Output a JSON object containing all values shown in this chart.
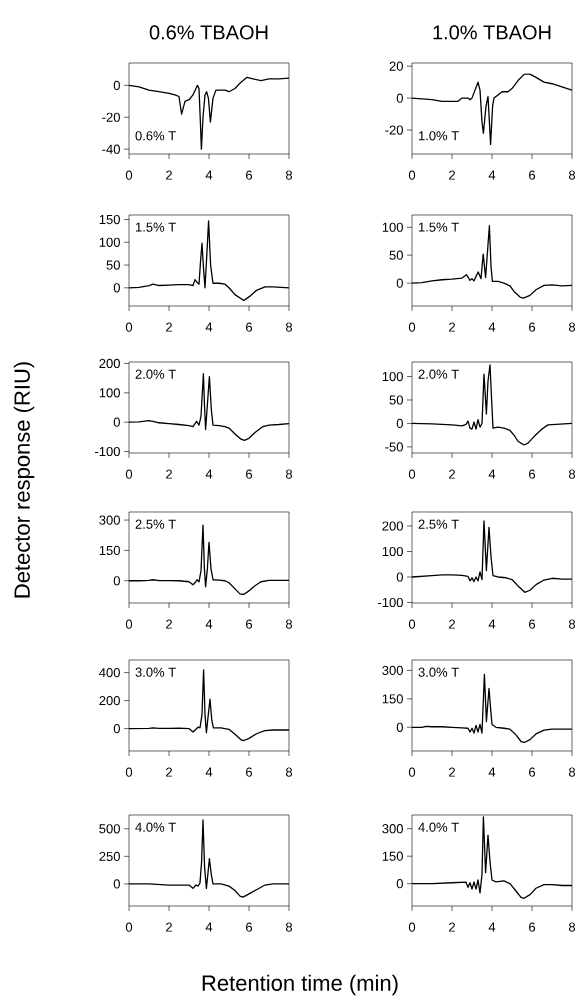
{
  "chart_data": [
    {
      "type": "line",
      "title": "0.6% TBAOH",
      "annotations": [
        "0.6% T"
      ],
      "color": "#000000",
      "xlim": [
        0,
        8
      ],
      "xticks": [
        0,
        2,
        4,
        6,
        8
      ],
      "ylim": [
        -43,
        14
      ],
      "yticks": [
        -40,
        -20,
        0
      ],
      "x": [
        0,
        0.5,
        1,
        1.5,
        2,
        2.3,
        2.5,
        2.63,
        2.8,
        3.0,
        3.2,
        3.42,
        3.5,
        3.56,
        3.62,
        3.7,
        3.8,
        3.88,
        3.97,
        4.07,
        4.2,
        4.35,
        4.6,
        4.8,
        5.0,
        5.3,
        5.6,
        5.9,
        6.2,
        6.6,
        7.0,
        7.5,
        8
      ],
      "values": [
        0,
        -1,
        -3,
        -4,
        -5,
        -6,
        -7,
        -18,
        -10,
        -9,
        -6,
        0,
        -2,
        -20,
        -40,
        -20,
        -6,
        -4,
        -8,
        -23,
        -8,
        -3,
        -3,
        -3,
        -4,
        -2,
        2,
        5,
        4,
        3,
        4,
        4,
        4.5
      ]
    },
    {
      "type": "line",
      "title": "1.0% TBAOH",
      "annotations": [
        "1.0% T"
      ],
      "color": "#000000",
      "xlim": [
        0,
        8
      ],
      "xticks": [
        0,
        2,
        4,
        6,
        8
      ],
      "ylim": [
        -35,
        22
      ],
      "yticks": [
        -20,
        0,
        20
      ],
      "x": [
        0,
        1,
        1.5,
        2,
        2.3,
        2.5,
        2.8,
        2.9,
        3.0,
        3.15,
        3.3,
        3.4,
        3.5,
        3.57,
        3.7,
        3.8,
        3.93,
        4.03,
        4.1,
        4.3,
        4.5,
        4.8,
        5.0,
        5.3,
        5.62,
        5.9,
        6.2,
        6.6,
        7,
        7.5,
        8
      ],
      "values": [
        0,
        -1,
        -2,
        -2,
        -2,
        0,
        0,
        -1,
        0,
        5,
        10,
        5,
        -15,
        -22,
        -5,
        1,
        -29,
        -5,
        0,
        2,
        4,
        4,
        6,
        11,
        15,
        15,
        13,
        10,
        9,
        7,
        5
      ]
    },
    {
      "type": "line",
      "annotations": [
        "1.5% T"
      ],
      "color": "#000000",
      "xlim": [
        0,
        8
      ],
      "xticks": [
        0,
        2,
        4,
        6,
        8
      ],
      "ylim": [
        -40,
        160
      ],
      "yticks": [
        0,
        50,
        100,
        150
      ],
      "x": [
        0,
        0.5,
        1.0,
        1.2,
        1.5,
        2,
        2.5,
        3,
        3.2,
        3.3,
        3.4,
        3.5,
        3.58,
        3.65,
        3.73,
        3.8,
        3.9,
        3.98,
        4.08,
        4.2,
        4.5,
        4.8,
        5.0,
        5.3,
        5.74,
        6.0,
        6.4,
        6.8,
        7.2,
        7.6,
        8
      ],
      "values": [
        0,
        1,
        5,
        8,
        5,
        6,
        7,
        7,
        5,
        18,
        12,
        8,
        60,
        98,
        40,
        0,
        80,
        147,
        50,
        10,
        10,
        8,
        0,
        -15,
        -28,
        -20,
        -5,
        2,
        2,
        1,
        0
      ]
    },
    {
      "type": "line",
      "annotations": [
        "1.5% T"
      ],
      "color": "#000000",
      "xlim": [
        0,
        8
      ],
      "xticks": [
        0,
        2,
        4,
        6,
        8
      ],
      "ylim": [
        -41,
        122
      ],
      "yticks": [
        0,
        50,
        100
      ],
      "x": [
        0,
        0.5,
        1,
        1.5,
        2,
        2.5,
        2.73,
        2.9,
        3.0,
        3.1,
        3.2,
        3.31,
        3.45,
        3.56,
        3.68,
        3.87,
        3.95,
        4.02,
        4.3,
        4.6,
        4.9,
        5.1,
        5.4,
        5.57,
        5.9,
        6.2,
        6.6,
        7,
        7.5,
        8
      ],
      "values": [
        0,
        1,
        4,
        6,
        7,
        9,
        15,
        5,
        8,
        4,
        12,
        20,
        8,
        52,
        10,
        103,
        30,
        3,
        3,
        0,
        -5,
        -15,
        -25,
        -27,
        -22,
        -12,
        -4,
        -3,
        -5,
        -4
      ]
    },
    {
      "type": "line",
      "ylabel": "Detector response (RIU)",
      "annotations": [
        "2.0% T"
      ],
      "color": "#000000",
      "xlim": [
        0,
        8
      ],
      "xticks": [
        0,
        2,
        4,
        6,
        8
      ],
      "ylim": [
        -105,
        205
      ],
      "yticks": [
        -100,
        0,
        100,
        200
      ],
      "x": [
        0,
        0.5,
        1.0,
        1.2,
        1.5,
        2,
        2.5,
        3.0,
        3.2,
        3.3,
        3.38,
        3.5,
        3.6,
        3.72,
        3.78,
        3.83,
        3.92,
        4.02,
        4.12,
        4.2,
        4.5,
        4.8,
        5.0,
        5.3,
        5.6,
        5.77,
        6.0,
        6.3,
        6.7,
        7,
        7.5,
        8
      ],
      "values": [
        0,
        1,
        5,
        3,
        -2,
        -5,
        -8,
        -12,
        -15,
        -5,
        3,
        -10,
        20,
        165,
        50,
        -25,
        60,
        155,
        40,
        -10,
        -12,
        -15,
        -20,
        -40,
        -58,
        -62,
        -55,
        -35,
        -15,
        -10,
        -8,
        -5
      ]
    },
    {
      "type": "line",
      "annotations": [
        "2.0% T"
      ],
      "color": "#000000",
      "xlim": [
        0,
        8
      ],
      "xticks": [
        0,
        2,
        4,
        6,
        8
      ],
      "ylim": [
        -63,
        131
      ],
      "yticks": [
        -50,
        0,
        50,
        100
      ],
      "x": [
        0,
        1,
        2,
        2.5,
        2.7,
        2.8,
        2.9,
        3.0,
        3.1,
        3.2,
        3.3,
        3.4,
        3.5,
        3.6,
        3.72,
        3.8,
        3.9,
        3.97,
        4.05,
        4.3,
        4.6,
        4.9,
        5.1,
        5.3,
        5.6,
        5.8,
        6.1,
        6.5,
        6.8,
        7.2,
        7.6,
        8
      ],
      "values": [
        0,
        -1,
        -3,
        -5,
        -2,
        5,
        -10,
        -12,
        3,
        -12,
        8,
        -8,
        0,
        105,
        20,
        90,
        125,
        60,
        -10,
        -8,
        -10,
        -15,
        -25,
        -38,
        -46,
        -42,
        -28,
        -12,
        -3,
        -2,
        -1,
        0
      ]
    },
    {
      "type": "line",
      "annotations": [
        "2.5% T"
      ],
      "color": "#000000",
      "xlim": [
        0,
        8
      ],
      "xticks": [
        0,
        2,
        4,
        6,
        8
      ],
      "ylim": [
        -110,
        340
      ],
      "yticks": [
        0,
        150,
        300
      ],
      "x": [
        0,
        0.5,
        1.0,
        1.2,
        1.5,
        2,
        2.5,
        3.0,
        3.2,
        3.3,
        3.4,
        3.5,
        3.6,
        3.7,
        3.77,
        3.83,
        3.92,
        4.0,
        4.1,
        4.2,
        4.5,
        4.8,
        5.0,
        5.3,
        5.55,
        5.73,
        6.0,
        6.3,
        6.6,
        7,
        7.5,
        8
      ],
      "values": [
        0,
        0,
        2,
        5,
        1,
        1,
        0,
        -5,
        -20,
        -10,
        5,
        -5,
        50,
        275,
        60,
        -30,
        60,
        190,
        60,
        5,
        3,
        0,
        -10,
        -40,
        -65,
        -68,
        -50,
        -25,
        -5,
        2,
        2,
        2
      ]
    },
    {
      "type": "line",
      "annotations": [
        "2.5% T"
      ],
      "color": "#000000",
      "xlim": [
        0,
        8
      ],
      "xticks": [
        0,
        2,
        4,
        6,
        8
      ],
      "ylim": [
        -102,
        255
      ],
      "yticks": [
        -100,
        0,
        100,
        200
      ],
      "x": [
        0,
        1,
        1.5,
        2,
        2.5,
        2.8,
        2.9,
        3.0,
        3.1,
        3.2,
        3.3,
        3.4,
        3.5,
        3.6,
        3.72,
        3.85,
        3.95,
        4.05,
        4.3,
        4.7,
        5.0,
        5.3,
        5.64,
        5.9,
        6.2,
        6.6,
        7,
        7.5,
        8
      ],
      "values": [
        0,
        5,
        8,
        8,
        6,
        2,
        -15,
        -3,
        -18,
        0,
        -15,
        20,
        -10,
        220,
        25,
        195,
        80,
        5,
        0,
        -3,
        -10,
        -35,
        -60,
        -52,
        -30,
        -12,
        -5,
        -8,
        -8
      ]
    },
    {
      "type": "line",
      "annotations": [
        "3.0% T"
      ],
      "color": "#000000",
      "xlim": [
        0,
        8
      ],
      "xticks": [
        0,
        2,
        4,
        6,
        8
      ],
      "ylim": [
        -160,
        490
      ],
      "yticks": [
        0,
        200,
        400
      ],
      "x": [
        0,
        1,
        1.2,
        1.5,
        2,
        2.5,
        3,
        3.2,
        3.35,
        3.45,
        3.55,
        3.65,
        3.73,
        3.8,
        3.87,
        3.95,
        4.05,
        4.14,
        4.22,
        4.6,
        5.0,
        5.3,
        5.6,
        5.75,
        6.0,
        6.4,
        6.8,
        7.2,
        7.6,
        8
      ],
      "values": [
        0,
        2,
        5,
        2,
        2,
        3,
        0,
        -25,
        -5,
        10,
        5,
        100,
        420,
        100,
        -30,
        80,
        210,
        60,
        5,
        5,
        -5,
        -40,
        -80,
        -85,
        -70,
        -35,
        -15,
        -10,
        -10,
        -10
      ]
    },
    {
      "type": "line",
      "annotations": [
        "3.0% T"
      ],
      "color": "#000000",
      "xlim": [
        0,
        8
      ],
      "xticks": [
        0,
        2,
        4,
        6,
        8
      ],
      "ylim": [
        -125,
        355
      ],
      "yticks": [
        0,
        150,
        300
      ],
      "x": [
        0,
        0.5,
        0.7,
        1,
        1.5,
        2,
        2.5,
        2.8,
        2.9,
        3.0,
        3.1,
        3.2,
        3.3,
        3.4,
        3.5,
        3.62,
        3.72,
        3.85,
        3.93,
        4.0,
        4.2,
        4.6,
        4.9,
        5.2,
        5.45,
        5.62,
        5.9,
        6.2,
        6.6,
        7,
        7.5,
        8
      ],
      "values": [
        0,
        0,
        5,
        3,
        3,
        0,
        -3,
        -5,
        -25,
        -5,
        -30,
        10,
        -25,
        15,
        -30,
        280,
        30,
        205,
        100,
        15,
        0,
        -5,
        -10,
        -40,
        -75,
        -80,
        -65,
        -35,
        -15,
        -10,
        -10,
        -10
      ]
    },
    {
      "type": "line",
      "xlabel": "Retention time (min)",
      "annotations": [
        "4.0% T"
      ],
      "color": "#000000",
      "xlim": [
        0,
        8
      ],
      "xticks": [
        0,
        2,
        4,
        6,
        8
      ],
      "ylim": [
        -200,
        625
      ],
      "yticks": [
        0,
        250,
        500
      ],
      "x": [
        0,
        1,
        2,
        2.5,
        3,
        3.2,
        3.35,
        3.45,
        3.55,
        3.63,
        3.7,
        3.78,
        3.87,
        3.95,
        4.02,
        4.12,
        4.2,
        4.6,
        5.0,
        5.3,
        5.55,
        5.7,
        6.0,
        6.4,
        6.8,
        7.2,
        8
      ],
      "values": [
        0,
        0,
        -10,
        -10,
        -10,
        -40,
        -10,
        -20,
        10,
        200,
        580,
        150,
        -40,
        100,
        230,
        80,
        0,
        0,
        -20,
        -60,
        -110,
        -120,
        -90,
        -50,
        -10,
        0,
        0
      ]
    },
    {
      "type": "line",
      "annotations": [
        "4.0% T"
      ],
      "color": "#000000",
      "xlim": [
        0,
        8
      ],
      "xticks": [
        0,
        2,
        4,
        6,
        8
      ],
      "ylim": [
        -122,
        375
      ],
      "yticks": [
        0,
        150,
        300
      ],
      "x": [
        0,
        1,
        2,
        2.7,
        2.8,
        2.9,
        3.0,
        3.1,
        3.2,
        3.3,
        3.4,
        3.5,
        3.57,
        3.68,
        3.8,
        3.9,
        4.0,
        4.2,
        4.6,
        4.9,
        5.2,
        5.45,
        5.6,
        5.9,
        6.2,
        6.6,
        7,
        7.5,
        8
      ],
      "values": [
        0,
        0,
        5,
        8,
        -20,
        5,
        -30,
        10,
        -30,
        20,
        -50,
        50,
        365,
        60,
        265,
        120,
        20,
        10,
        15,
        0,
        -40,
        -75,
        -80,
        -60,
        -25,
        -5,
        -5,
        -10,
        -10
      ]
    }
  ]
}
